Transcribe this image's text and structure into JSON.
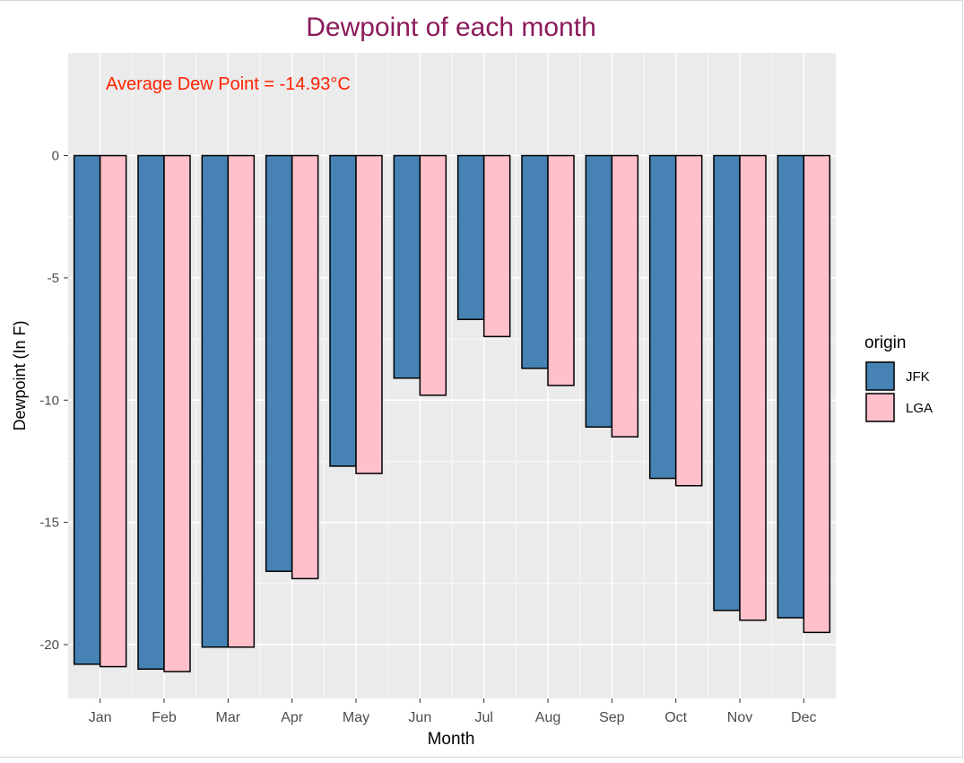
{
  "chart_data": {
    "type": "bar",
    "title": "Dewpoint of each month",
    "annotation": "Average Dew Point = -14.93°C",
    "xlabel": "Month",
    "ylabel": "Dewpoint (In F)",
    "categories": [
      "Jan",
      "Feb",
      "Mar",
      "Apr",
      "May",
      "Jun",
      "Jul",
      "Aug",
      "Sep",
      "Oct",
      "Nov",
      "Dec"
    ],
    "series": [
      {
        "name": "JFK",
        "color": "#4682B4",
        "values": [
          -20.8,
          -21.0,
          -20.1,
          -17.0,
          -12.7,
          -9.1,
          -6.7,
          -8.7,
          -11.1,
          -13.2,
          -18.6,
          -18.9
        ]
      },
      {
        "name": "LGA",
        "color": "#FFC0CB",
        "values": [
          -20.9,
          -21.1,
          -20.1,
          -17.3,
          -13.0,
          -9.8,
          -7.4,
          -9.4,
          -11.5,
          -13.5,
          -19.0,
          -19.5
        ]
      }
    ],
    "ylim": [
      -22.2,
      4.2
    ],
    "yticks": [
      0,
      -5,
      -10,
      -15,
      -20
    ],
    "grid": true,
    "legend": {
      "title": "origin",
      "position": "right"
    },
    "colors": {
      "title": "#8B1A5A",
      "annotation": "#FF2200",
      "panel": "#EBEBEB",
      "grid": "#FFFFFF"
    }
  }
}
